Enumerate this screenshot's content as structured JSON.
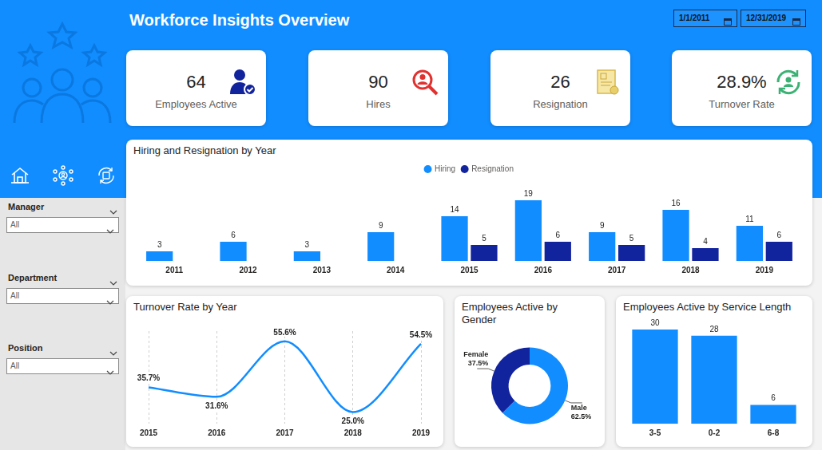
{
  "header": {
    "title": "Workforce Insights Overview",
    "date_from": "1/1/2011",
    "date_to": "12/31/2019"
  },
  "kpis": [
    {
      "value": "64",
      "label": "Employees Active"
    },
    {
      "value": "90",
      "label": "Hires"
    },
    {
      "value": "26",
      "label": "Resignation"
    },
    {
      "value": "28.9%",
      "label": "Turnover Rate"
    }
  ],
  "filters": [
    {
      "label": "Manager",
      "value": "All"
    },
    {
      "label": "Department",
      "value": "All"
    },
    {
      "label": "Position",
      "value": "All"
    }
  ],
  "chart_data": [
    {
      "type": "bar",
      "title": "Hiring and Resignation by Year",
      "categories": [
        "2011",
        "2012",
        "2013",
        "2014",
        "2015",
        "2016",
        "2017",
        "2018",
        "2019"
      ],
      "series": [
        {
          "name": "Hiring",
          "color": "#118dff",
          "values": [
            3,
            6,
            3,
            9,
            14,
            19,
            9,
            16,
            11
          ]
        },
        {
          "name": "Resignation",
          "color": "#12239e",
          "values": [
            null,
            null,
            null,
            null,
            5,
            6,
            5,
            4,
            6
          ]
        }
      ],
      "ylim": [
        0,
        25
      ],
      "legend": "top",
      "data_labels": true,
      "tick_labels": "x",
      "grid": false
    },
    {
      "type": "line",
      "title": "Turnover Rate by Year",
      "categories": [
        "2015",
        "2016",
        "2017",
        "2018",
        "2019"
      ],
      "values": [
        35.7,
        31.6,
        55.6,
        25.0,
        54.5
      ],
      "value_labels": [
        "35.7%",
        "31.6%",
        "55.6%",
        "25.0%",
        "54.5%"
      ],
      "color": "#118dff",
      "ylim": [
        20,
        60
      ],
      "data_labels": true,
      "tick_labels": "x",
      "grid": true,
      "marker": "none",
      "line_style": "solid"
    },
    {
      "type": "doughnut",
      "title": "Employees Active by Gender",
      "categories": [
        "Male",
        "Female"
      ],
      "values": [
        62.5,
        37.5
      ],
      "value_labels": [
        "62.5%",
        "37.5%"
      ],
      "colors": [
        "#118dff",
        "#12239e"
      ],
      "data_labels": true
    },
    {
      "type": "bar",
      "title": "Employees Active by Service Length",
      "categories": [
        "3-5",
        "0-2",
        "6-8"
      ],
      "values": [
        30,
        28,
        6
      ],
      "color": "#118dff",
      "ylim": [
        0,
        30
      ],
      "data_labels": true,
      "tick_labels": "x",
      "grid": false
    }
  ]
}
